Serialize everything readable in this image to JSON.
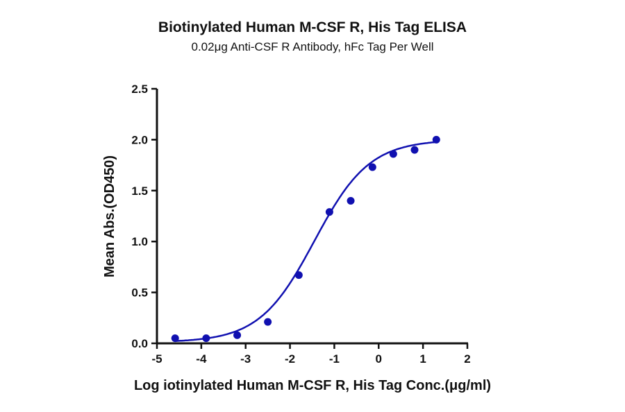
{
  "chart_data": {
    "type": "scatter",
    "title": "Biotinylated Human M-CSF R, His Tag ELISA",
    "subtitle": "0.02μg Anti-CSF R Antibody, hFc Tag Per Well",
    "xlabel": "Log iotinylated Human M-CSF R, His Tag Conc.(μg/ml)",
    "ylabel": "Mean Abs.(OD450)",
    "xlim": [
      -5,
      2
    ],
    "ylim": [
      0,
      2.5
    ],
    "xticks": [
      "-5",
      "-4",
      "-3",
      "-2",
      "-1",
      "0",
      "1",
      "2"
    ],
    "yticks": [
      "0.0",
      "0.5",
      "1.0",
      "1.5",
      "2.0",
      "2.5"
    ],
    "grid": false,
    "color": "#1010b0",
    "series": [
      {
        "x": [
          -4.59,
          -3.89,
          -3.19,
          -2.5,
          -1.8,
          -1.11,
          -0.63,
          -0.14,
          0.33,
          0.81,
          1.3
        ],
        "y": [
          0.05,
          0.05,
          0.08,
          0.21,
          0.67,
          1.29,
          1.4,
          1.73,
          1.86,
          1.9,
          2.0
        ]
      }
    ],
    "fit": {
      "type": "4PL",
      "bottom": 0.01,
      "top": 2.0,
      "logEC50": -1.45,
      "hill": 0.7,
      "x_range": [
        -4.59,
        1.3
      ]
    }
  }
}
